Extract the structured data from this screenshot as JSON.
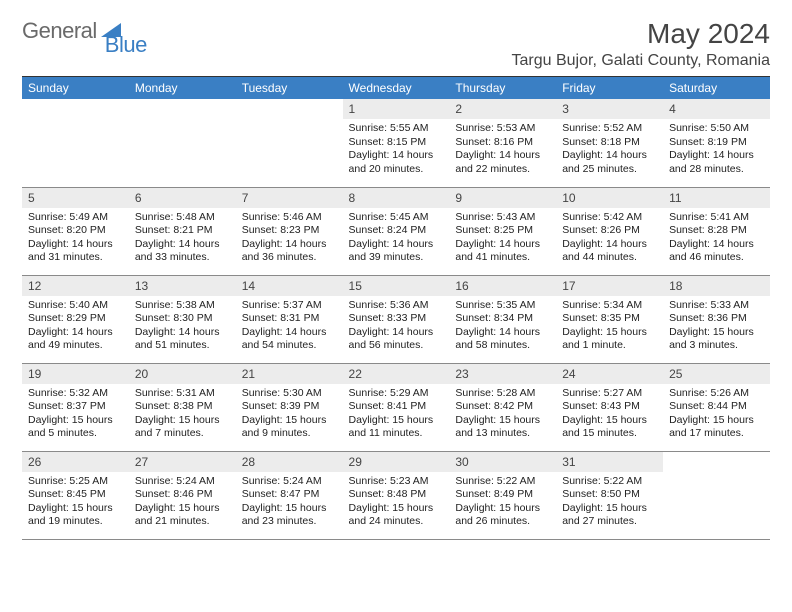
{
  "logo": {
    "text1": "General",
    "text2": "Blue",
    "color1": "#6a6a6a",
    "color2": "#3a7fc4",
    "shape_color": "#3a7fc4"
  },
  "title": "May 2024",
  "location": "Targu Bujor, Galati County, Romania",
  "header_bg": "#3a7fc4",
  "header_fg": "#ffffff",
  "daynum_bg": "#ececec",
  "border_color": "#8a8a8a",
  "weekdays": [
    "Sunday",
    "Monday",
    "Tuesday",
    "Wednesday",
    "Thursday",
    "Friday",
    "Saturday"
  ],
  "cells": [
    {
      "day": "",
      "lines": [
        "",
        "",
        "",
        ""
      ]
    },
    {
      "day": "",
      "lines": [
        "",
        "",
        "",
        ""
      ]
    },
    {
      "day": "",
      "lines": [
        "",
        "",
        "",
        ""
      ]
    },
    {
      "day": "1",
      "lines": [
        "Sunrise: 5:55 AM",
        "Sunset: 8:15 PM",
        "Daylight: 14 hours",
        "and 20 minutes."
      ]
    },
    {
      "day": "2",
      "lines": [
        "Sunrise: 5:53 AM",
        "Sunset: 8:16 PM",
        "Daylight: 14 hours",
        "and 22 minutes."
      ]
    },
    {
      "day": "3",
      "lines": [
        "Sunrise: 5:52 AM",
        "Sunset: 8:18 PM",
        "Daylight: 14 hours",
        "and 25 minutes."
      ]
    },
    {
      "day": "4",
      "lines": [
        "Sunrise: 5:50 AM",
        "Sunset: 8:19 PM",
        "Daylight: 14 hours",
        "and 28 minutes."
      ]
    },
    {
      "day": "5",
      "lines": [
        "Sunrise: 5:49 AM",
        "Sunset: 8:20 PM",
        "Daylight: 14 hours",
        "and 31 minutes."
      ]
    },
    {
      "day": "6",
      "lines": [
        "Sunrise: 5:48 AM",
        "Sunset: 8:21 PM",
        "Daylight: 14 hours",
        "and 33 minutes."
      ]
    },
    {
      "day": "7",
      "lines": [
        "Sunrise: 5:46 AM",
        "Sunset: 8:23 PM",
        "Daylight: 14 hours",
        "and 36 minutes."
      ]
    },
    {
      "day": "8",
      "lines": [
        "Sunrise: 5:45 AM",
        "Sunset: 8:24 PM",
        "Daylight: 14 hours",
        "and 39 minutes."
      ]
    },
    {
      "day": "9",
      "lines": [
        "Sunrise: 5:43 AM",
        "Sunset: 8:25 PM",
        "Daylight: 14 hours",
        "and 41 minutes."
      ]
    },
    {
      "day": "10",
      "lines": [
        "Sunrise: 5:42 AM",
        "Sunset: 8:26 PM",
        "Daylight: 14 hours",
        "and 44 minutes."
      ]
    },
    {
      "day": "11",
      "lines": [
        "Sunrise: 5:41 AM",
        "Sunset: 8:28 PM",
        "Daylight: 14 hours",
        "and 46 minutes."
      ]
    },
    {
      "day": "12",
      "lines": [
        "Sunrise: 5:40 AM",
        "Sunset: 8:29 PM",
        "Daylight: 14 hours",
        "and 49 minutes."
      ]
    },
    {
      "day": "13",
      "lines": [
        "Sunrise: 5:38 AM",
        "Sunset: 8:30 PM",
        "Daylight: 14 hours",
        "and 51 minutes."
      ]
    },
    {
      "day": "14",
      "lines": [
        "Sunrise: 5:37 AM",
        "Sunset: 8:31 PM",
        "Daylight: 14 hours",
        "and 54 minutes."
      ]
    },
    {
      "day": "15",
      "lines": [
        "Sunrise: 5:36 AM",
        "Sunset: 8:33 PM",
        "Daylight: 14 hours",
        "and 56 minutes."
      ]
    },
    {
      "day": "16",
      "lines": [
        "Sunrise: 5:35 AM",
        "Sunset: 8:34 PM",
        "Daylight: 14 hours",
        "and 58 minutes."
      ]
    },
    {
      "day": "17",
      "lines": [
        "Sunrise: 5:34 AM",
        "Sunset: 8:35 PM",
        "Daylight: 15 hours",
        "and 1 minute."
      ]
    },
    {
      "day": "18",
      "lines": [
        "Sunrise: 5:33 AM",
        "Sunset: 8:36 PM",
        "Daylight: 15 hours",
        "and 3 minutes."
      ]
    },
    {
      "day": "19",
      "lines": [
        "Sunrise: 5:32 AM",
        "Sunset: 8:37 PM",
        "Daylight: 15 hours",
        "and 5 minutes."
      ]
    },
    {
      "day": "20",
      "lines": [
        "Sunrise: 5:31 AM",
        "Sunset: 8:38 PM",
        "Daylight: 15 hours",
        "and 7 minutes."
      ]
    },
    {
      "day": "21",
      "lines": [
        "Sunrise: 5:30 AM",
        "Sunset: 8:39 PM",
        "Daylight: 15 hours",
        "and 9 minutes."
      ]
    },
    {
      "day": "22",
      "lines": [
        "Sunrise: 5:29 AM",
        "Sunset: 8:41 PM",
        "Daylight: 15 hours",
        "and 11 minutes."
      ]
    },
    {
      "day": "23",
      "lines": [
        "Sunrise: 5:28 AM",
        "Sunset: 8:42 PM",
        "Daylight: 15 hours",
        "and 13 minutes."
      ]
    },
    {
      "day": "24",
      "lines": [
        "Sunrise: 5:27 AM",
        "Sunset: 8:43 PM",
        "Daylight: 15 hours",
        "and 15 minutes."
      ]
    },
    {
      "day": "25",
      "lines": [
        "Sunrise: 5:26 AM",
        "Sunset: 8:44 PM",
        "Daylight: 15 hours",
        "and 17 minutes."
      ]
    },
    {
      "day": "26",
      "lines": [
        "Sunrise: 5:25 AM",
        "Sunset: 8:45 PM",
        "Daylight: 15 hours",
        "and 19 minutes."
      ]
    },
    {
      "day": "27",
      "lines": [
        "Sunrise: 5:24 AM",
        "Sunset: 8:46 PM",
        "Daylight: 15 hours",
        "and 21 minutes."
      ]
    },
    {
      "day": "28",
      "lines": [
        "Sunrise: 5:24 AM",
        "Sunset: 8:47 PM",
        "Daylight: 15 hours",
        "and 23 minutes."
      ]
    },
    {
      "day": "29",
      "lines": [
        "Sunrise: 5:23 AM",
        "Sunset: 8:48 PM",
        "Daylight: 15 hours",
        "and 24 minutes."
      ]
    },
    {
      "day": "30",
      "lines": [
        "Sunrise: 5:22 AM",
        "Sunset: 8:49 PM",
        "Daylight: 15 hours",
        "and 26 minutes."
      ]
    },
    {
      "day": "31",
      "lines": [
        "Sunrise: 5:22 AM",
        "Sunset: 8:50 PM",
        "Daylight: 15 hours",
        "and 27 minutes."
      ]
    },
    {
      "day": "",
      "lines": [
        "",
        "",
        "",
        ""
      ]
    }
  ]
}
